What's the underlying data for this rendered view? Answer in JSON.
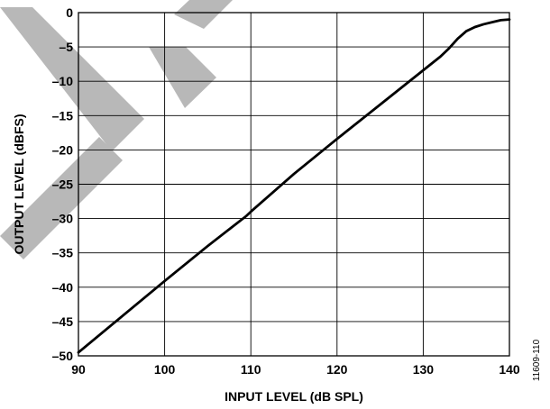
{
  "chart_data": {
    "type": "line",
    "title": "",
    "xlabel": "INPUT LEVEL (dB SPL)",
    "ylabel": "OUTPUT LEVEL (dBFS)",
    "xlim": [
      90,
      140
    ],
    "ylim": [
      -50,
      0
    ],
    "xticks": [
      90,
      100,
      110,
      120,
      130,
      140
    ],
    "yticks": [
      0,
      -5,
      -10,
      -15,
      -20,
      -25,
      -30,
      -35,
      -40,
      -45,
      -50
    ],
    "xtick_labels": [
      "90",
      "100",
      "110",
      "120",
      "130",
      "140"
    ],
    "ytick_labels": [
      "0",
      "–5",
      "–10",
      "–15",
      "–20",
      "–25",
      "–30",
      "–35",
      "–40",
      "–45",
      "–50"
    ],
    "grid": true,
    "line_color": "#000000",
    "grid_color": "#000000",
    "series": [
      {
        "x": [
          90,
          95,
          100,
          105,
          109.5,
          110,
          111,
          115,
          120,
          125,
          130,
          132,
          133,
          134,
          135,
          136,
          137,
          138,
          139,
          140
        ],
        "y": [
          -49.5,
          -44.3,
          -39.1,
          -34.0,
          -29.6,
          -29.0,
          -27.9,
          -23.5,
          -18.4,
          -13.4,
          -8.4,
          -6.4,
          -5.2,
          -3.8,
          -2.7,
          -2.1,
          -1.7,
          -1.4,
          -1.1,
          -1.0
        ]
      }
    ]
  },
  "figure_id": "11609-110",
  "watermark_color": "#b8b8b8"
}
